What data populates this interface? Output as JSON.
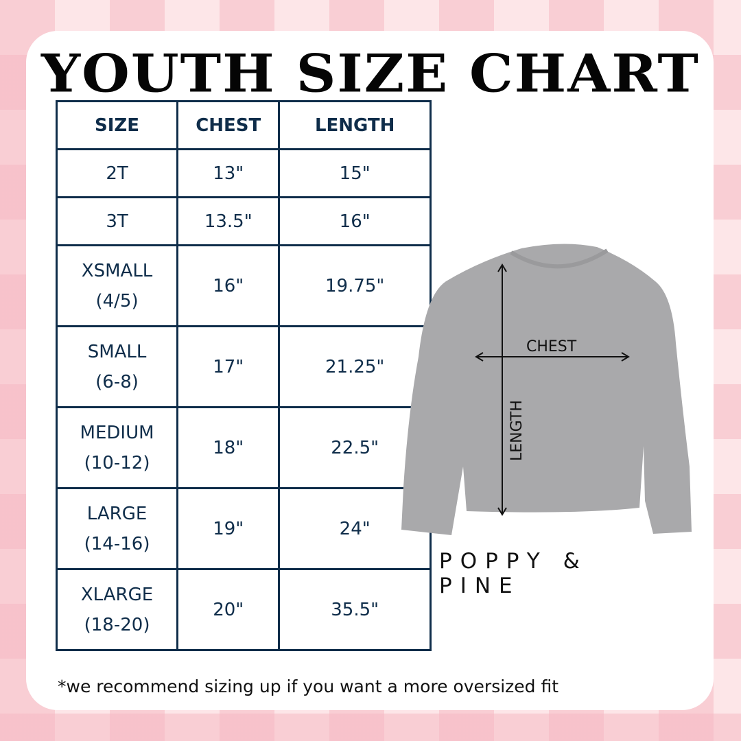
{
  "title": "YOUTH SIZE CHART",
  "table": {
    "headers": [
      "SIZE",
      "CHEST",
      "LENGTH"
    ],
    "rows": [
      {
        "size": "2T",
        "size_range": "",
        "chest": "13\"",
        "length": "15\""
      },
      {
        "size": "3T",
        "size_range": "",
        "chest": "13.5\"",
        "length": "16\""
      },
      {
        "size": "XSMALL",
        "size_range": "(4/5)",
        "chest": "16\"",
        "length": "19.75\""
      },
      {
        "size": "SMALL",
        "size_range": "(6-8)",
        "chest": "17\"",
        "length": "21.25\""
      },
      {
        "size": "MEDIUM",
        "size_range": "(10-12)",
        "chest": "18\"",
        "length": "22.5\""
      },
      {
        "size": "LARGE",
        "size_range": "(14-16)",
        "chest": "19\"",
        "length": "24\""
      },
      {
        "size": "XLARGE",
        "size_range": "(18-20)",
        "chest": "20\"",
        "length": "35.5\""
      }
    ]
  },
  "diagram": {
    "chest_label": "CHEST",
    "length_label": "LENGTH"
  },
  "brand": "POPPY & PINE",
  "note": "*we recommend sizing up if you want a more oversized fit",
  "colors": {
    "table_border": "#0f2d4a",
    "background": "#fde6e8",
    "sweatshirt": "#a9a9ab"
  }
}
